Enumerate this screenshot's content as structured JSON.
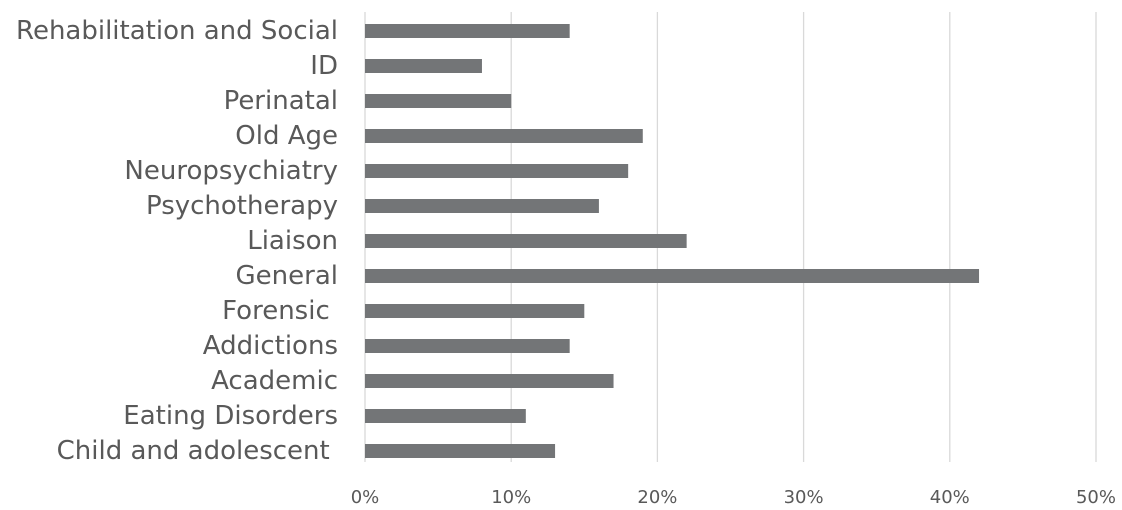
{
  "chart_data": {
    "type": "bar",
    "orientation": "horizontal",
    "title": "",
    "xlabel": "",
    "ylabel": "",
    "categories": [
      "Rehabilitation and Social",
      "ID",
      "Perinatal",
      "Old Age",
      "Neuropsychiatry",
      "Psychotherapy",
      "Liaison",
      "General",
      "Forensic ",
      "Addictions",
      "Academic",
      "Eating Disorders",
      "Child and adolescent "
    ],
    "values": [
      14,
      8,
      10,
      19,
      18,
      16,
      22,
      42,
      15,
      14,
      17,
      11,
      13
    ],
    "xlim": [
      0,
      50
    ],
    "x_ticks": [
      0,
      10,
      20,
      30,
      40,
      50
    ],
    "x_tick_labels": [
      "0%",
      "10%",
      "20%",
      "30%",
      "40%",
      "50%"
    ],
    "grid": "vertical",
    "legend": "none",
    "colors": {
      "bar": "#737577",
      "gridline": "#d9d9d9",
      "label_text": "#595959"
    }
  }
}
